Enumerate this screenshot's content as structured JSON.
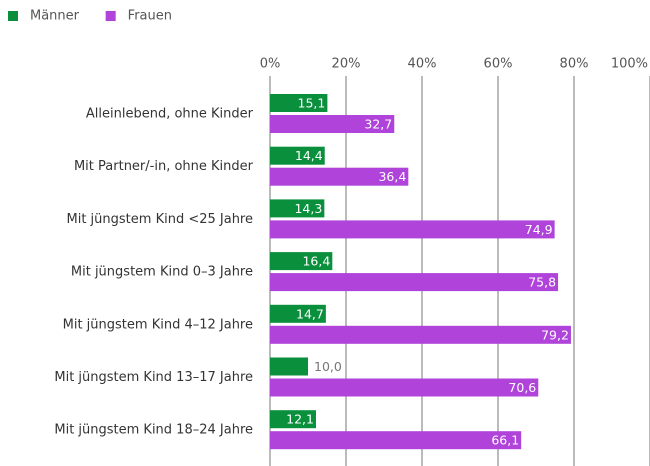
{
  "chart_data": {
    "type": "bar",
    "orientation": "horizontal",
    "categories": [
      "Alleinlebend, ohne Kinder",
      "Mit Partner/-in, ohne Kinder",
      "Mit jüngstem Kind <25 Jahre",
      "Mit jüngstem Kind 0–3 Jahre",
      "Mit jüngstem Kind 4–12 Jahre",
      "Mit jüngstem Kind 13–17 Jahre",
      "Mit jüngstem Kind 18–24 Jahre"
    ],
    "series": [
      {
        "name": "Männer",
        "color": "#0a8f3c",
        "values": [
          15.1,
          14.4,
          14.3,
          16.4,
          14.7,
          10.0,
          12.1
        ],
        "value_labels": [
          "15,1",
          "14,4",
          "14,3",
          "16,4",
          "14,7",
          "10,0",
          "12,1"
        ]
      },
      {
        "name": "Frauen",
        "color": "#b043d9",
        "values": [
          32.7,
          36.4,
          74.9,
          75.8,
          79.2,
          70.6,
          66.1
        ],
        "value_labels": [
          "32,7",
          "36,4",
          "74,9",
          "75,8",
          "79,2",
          "70,6",
          "66,1"
        ]
      }
    ],
    "xlim": [
      0,
      100
    ],
    "xticks": [
      {
        "value": 0,
        "label": "0%"
      },
      {
        "value": 20,
        "label": "20%"
      },
      {
        "value": 40,
        "label": "40%"
      },
      {
        "value": 60,
        "label": "60%"
      },
      {
        "value": 80,
        "label": "80%"
      },
      {
        "value": 100,
        "label": "100%"
      }
    ],
    "grid": true,
    "legend": "top-left"
  }
}
